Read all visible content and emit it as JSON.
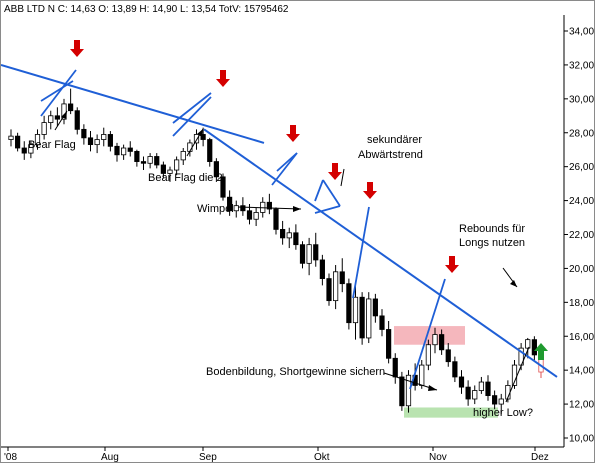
{
  "header": {
    "symbol": "ABB LTD N",
    "quote": "ABB LTD N C: 14,63 O: 13,89 H: 14,90 L: 13,54 TotV: 15795462"
  },
  "chart_data": {
    "type": "candlestick",
    "ylim": [
      10,
      34
    ],
    "y_ticks": [
      "10,00",
      "12,00",
      "14,00",
      "16,00",
      "18,00",
      "20,00",
      "22,00",
      "24,00",
      "26,00",
      "28,00",
      "30,00",
      "32,00",
      "34,00"
    ],
    "x_ticks": [
      "'08",
      "Aug",
      "Sep",
      "Okt",
      "Nov",
      "Dez"
    ],
    "grid": false,
    "legend": "none",
    "candles": [
      [
        27.6,
        28.2,
        27.2,
        27.8
      ],
      [
        27.8,
        28.0,
        26.9,
        27.1
      ],
      [
        27.1,
        27.5,
        26.4,
        26.8
      ],
      [
        26.8,
        27.5,
        26.5,
        27.3
      ],
      [
        27.3,
        28.2,
        27.0,
        27.9
      ],
      [
        27.9,
        29.0,
        27.6,
        28.6
      ],
      [
        28.6,
        29.3,
        28.2,
        29.0
      ],
      [
        29.0,
        29.5,
        28.4,
        28.8
      ],
      [
        28.8,
        30.0,
        28.5,
        29.7
      ],
      [
        29.7,
        30.6,
        29.1,
        29.3
      ],
      [
        29.3,
        29.5,
        27.9,
        28.2
      ],
      [
        28.2,
        28.5,
        27.3,
        27.7
      ],
      [
        27.7,
        28.1,
        26.9,
        27.3
      ],
      [
        27.3,
        27.9,
        26.8,
        27.6
      ],
      [
        27.6,
        28.3,
        27.2,
        27.9
      ],
      [
        27.9,
        28.1,
        26.9,
        27.2
      ],
      [
        27.2,
        27.4,
        26.3,
        26.7
      ],
      [
        26.7,
        27.3,
        26.4,
        27.1
      ],
      [
        27.1,
        27.5,
        26.6,
        26.9
      ],
      [
        26.9,
        27.0,
        26.0,
        26.3
      ],
      [
        26.3,
        26.6,
        25.8,
        26.2
      ],
      [
        26.2,
        26.8,
        25.9,
        26.6
      ],
      [
        26.6,
        26.8,
        25.9,
        26.1
      ],
      [
        26.1,
        26.3,
        25.3,
        25.6
      ],
      [
        25.6,
        26.0,
        25.1,
        25.8
      ],
      [
        25.8,
        26.6,
        25.5,
        26.4
      ],
      [
        26.4,
        27.1,
        26.1,
        26.9
      ],
      [
        26.9,
        27.6,
        26.6,
        27.4
      ],
      [
        27.4,
        28.2,
        27.0,
        27.9
      ],
      [
        27.9,
        28.3,
        27.2,
        27.6
      ],
      [
        27.6,
        27.7,
        26.0,
        26.3
      ],
      [
        26.3,
        26.5,
        25.1,
        25.4
      ],
      [
        25.4,
        25.6,
        24.0,
        24.2
      ],
      [
        24.2,
        24.6,
        23.1,
        23.4
      ],
      [
        23.4,
        24.0,
        23.0,
        23.7
      ],
      [
        23.7,
        24.2,
        23.1,
        23.4
      ],
      [
        23.4,
        23.8,
        22.6,
        22.9
      ],
      [
        22.9,
        23.6,
        22.5,
        23.3
      ],
      [
        23.3,
        24.2,
        23.0,
        23.9
      ],
      [
        23.9,
        24.4,
        23.2,
        23.5
      ],
      [
        23.5,
        23.6,
        22.0,
        22.3
      ],
      [
        22.3,
        22.8,
        21.4,
        21.8
      ],
      [
        21.8,
        22.4,
        21.2,
        22.1
      ],
      [
        22.1,
        22.6,
        21.1,
        21.4
      ],
      [
        21.4,
        21.6,
        20.0,
        20.3
      ],
      [
        20.3,
        21.8,
        19.6,
        21.4
      ],
      [
        21.4,
        22.1,
        20.1,
        20.5
      ],
      [
        20.5,
        20.8,
        19.0,
        19.4
      ],
      [
        19.4,
        19.7,
        17.8,
        18.1
      ],
      [
        18.1,
        20.2,
        17.6,
        19.8
      ],
      [
        19.8,
        20.6,
        18.6,
        19.1
      ],
      [
        19.1,
        19.4,
        16.4,
        16.8
      ],
      [
        16.8,
        19.0,
        15.8,
        18.3
      ],
      [
        18.3,
        18.6,
        15.5,
        15.9
      ],
      [
        15.9,
        18.6,
        15.6,
        18.2
      ],
      [
        18.2,
        18.5,
        16.8,
        17.2
      ],
      [
        17.2,
        17.6,
        16.0,
        16.4
      ],
      [
        16.4,
        16.9,
        14.4,
        14.7
      ],
      [
        14.7,
        15.0,
        13.2,
        13.6
      ],
      [
        13.6,
        13.9,
        11.6,
        11.9
      ],
      [
        11.9,
        14.0,
        11.5,
        13.7
      ],
      [
        13.7,
        14.4,
        12.8,
        13.1
      ],
      [
        13.1,
        14.6,
        12.9,
        14.3
      ],
      [
        14.3,
        15.8,
        14.0,
        15.5
      ],
      [
        15.5,
        16.5,
        15.0,
        16.1
      ],
      [
        16.1,
        16.4,
        14.9,
        15.2
      ],
      [
        15.2,
        15.6,
        14.2,
        14.5
      ],
      [
        14.5,
        14.8,
        13.3,
        13.6
      ],
      [
        13.6,
        14.0,
        12.6,
        13.0
      ],
      [
        13.0,
        13.4,
        11.9,
        12.3
      ],
      [
        12.3,
        13.1,
        12.0,
        12.8
      ],
      [
        12.8,
        13.6,
        12.6,
        13.3
      ],
      [
        13.3,
        13.7,
        12.2,
        12.5
      ],
      [
        12.5,
        12.8,
        11.7,
        12.0
      ],
      [
        12.0,
        12.6,
        11.4,
        12.3
      ],
      [
        12.3,
        13.4,
        12.1,
        13.1
      ],
      [
        13.1,
        14.6,
        12.9,
        14.3
      ],
      [
        14.3,
        15.6,
        14.0,
        15.3
      ],
      [
        15.3,
        15.9,
        14.7,
        15.8
      ],
      [
        15.8,
        16.0,
        14.6,
        14.9
      ],
      [
        13.89,
        14.9,
        13.54,
        14.63
      ]
    ],
    "trendlines": [
      {
        "from": [
          "Jul-Anfang",
          32.0
        ],
        "to": [
          "Sep",
          27.4
        ]
      },
      {
        "from": [
          "Sep",
          28.2
        ],
        "to": [
          "Dez",
          13.6
        ]
      }
    ],
    "zones": [
      {
        "color": "#f5b7bd",
        "ymin": 15.5,
        "ymax": 16.6
      },
      {
        "color": "#b9e3b0",
        "ymin": 11.2,
        "ymax": 11.8
      }
    ],
    "annotations": [
      "Bear Flag",
      "Bear Flag die 2.",
      "Wimpel",
      "sekundärer",
      "Abwärtstrend",
      "Rebounds für",
      "Longs nutzen",
      "Bodenbildung, Shortgewinne sichern",
      "higher Low?"
    ],
    "colors": {
      "up": "#ffffff",
      "down": "#000000",
      "trend": "#1f5fd6",
      "arrow_down": "#d40000",
      "arrow_up": "#1f9a2f",
      "last_candle": "#e05050"
    }
  }
}
